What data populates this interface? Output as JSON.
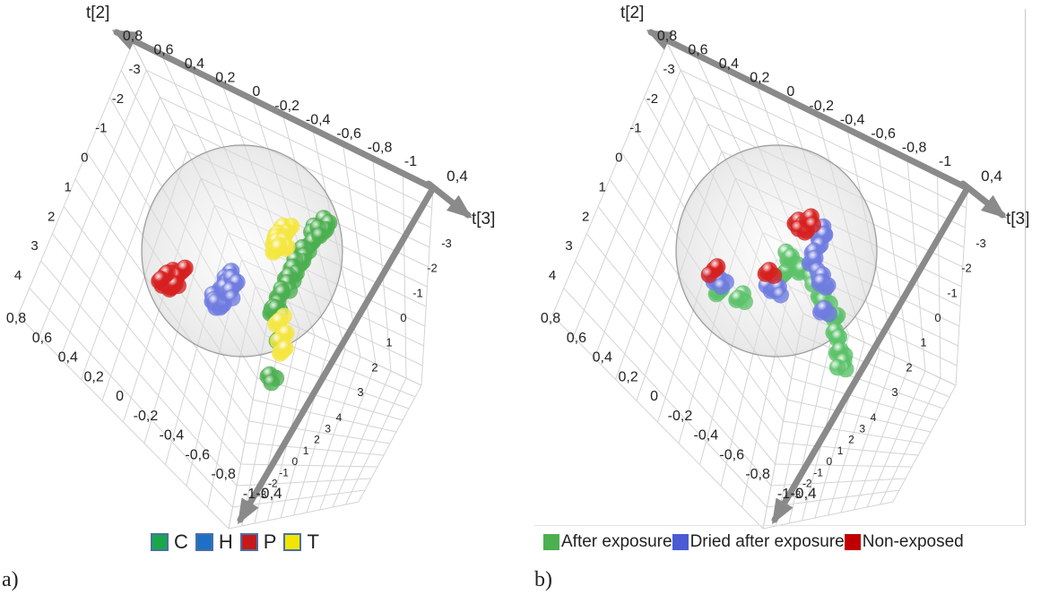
{
  "figure": {
    "panels": [
      {
        "label": "a)",
        "legend": [
          {
            "label": "C",
            "color": "#1aa64a"
          },
          {
            "label": "H",
            "color": "#1f6fc4"
          },
          {
            "label": "P",
            "color": "#c41a1a"
          },
          {
            "label": "T",
            "color": "#f2e600"
          }
        ]
      },
      {
        "label": "b)",
        "legend": [
          {
            "label": "After exposure",
            "color": "#4caf50"
          },
          {
            "label": "Dried after exposure",
            "color": "#4a5bd4"
          },
          {
            "label": "Non-exposed",
            "color": "#c00000"
          }
        ]
      }
    ]
  },
  "chart_data": [
    {
      "type": "scatter",
      "subtype": "3d-score-plot",
      "panel": "a)",
      "axes": {
        "t[2]": {
          "label": "t[2]",
          "ticks": [
            "0,8",
            "0,6",
            "0,4",
            "0,2",
            "0",
            "-0,2",
            "-0,4",
            "-0,6",
            "-0,8",
            "-1"
          ]
        },
        "left_vertical": {
          "ticks": [
            "-3",
            "-2",
            "-1",
            "0",
            "1",
            "2",
            "3",
            "4"
          ]
        },
        "bottom_diag": {
          "ticks": [
            "0,8",
            "0,6",
            "0,4",
            "0,2",
            "0",
            "-0,2",
            "-0,4",
            "-0,6",
            "-0,8",
            "-1"
          ]
        },
        "t[3]": {
          "label": "t[3]",
          "ticks": [
            "0,4",
            "-0,4"
          ]
        },
        "right_vertical": {
          "ticks": [
            "-3",
            "-2",
            "-1",
            "0",
            "1",
            "2",
            "3"
          ]
        },
        "bottom_right": {
          "ticks": [
            "4",
            "3",
            "2",
            "1",
            "0",
            "-1",
            "-2",
            "-3"
          ]
        }
      },
      "confidence_ellipsoid": true,
      "series": [
        {
          "name": "C",
          "color": "#4caf50",
          "points": [
            [
              0.55,
              -0.3,
              0.1
            ],
            [
              0.52,
              -0.25,
              0.12
            ],
            [
              0.48,
              -0.2,
              0.1
            ],
            [
              0.45,
              -0.12,
              0.08
            ],
            [
              0.42,
              -0.05,
              0.05
            ],
            [
              0.4,
              0.02,
              0.02
            ],
            [
              0.38,
              0.08,
              0.0
            ],
            [
              0.36,
              0.15,
              -0.02
            ],
            [
              0.33,
              0.22,
              -0.04
            ],
            [
              0.3,
              0.3,
              -0.06
            ],
            [
              0.28,
              0.35,
              -0.08
            ],
            [
              0.6,
              -0.35,
              0.15
            ],
            [
              0.56,
              -0.28,
              0.14
            ],
            [
              0.35,
              0.55,
              -0.1
            ],
            [
              0.32,
              0.9,
              -0.15
            ]
          ]
        },
        {
          "name": "H",
          "color": "#6f7ce0",
          "points": [
            [
              -0.1,
              0.05,
              0.0
            ],
            [
              -0.12,
              0.1,
              0.02
            ],
            [
              -0.15,
              0.15,
              0.0
            ],
            [
              -0.18,
              0.2,
              -0.02
            ],
            [
              -0.2,
              0.25,
              0.0
            ],
            [
              -0.14,
              0.2,
              0.04
            ],
            [
              -0.08,
              0.12,
              0.02
            ],
            [
              -0.22,
              0.3,
              0.02
            ],
            [
              -0.16,
              0.28,
              -0.04
            ],
            [
              -0.1,
              0.22,
              0.0
            ]
          ]
        },
        {
          "name": "P",
          "color": "#d62020",
          "points": [
            [
              -0.55,
              0.05,
              0.0
            ],
            [
              -0.58,
              0.08,
              0.02
            ],
            [
              -0.52,
              0.1,
              -0.02
            ],
            [
              -0.6,
              0.12,
              0.0
            ],
            [
              -0.5,
              0.04,
              0.03
            ],
            [
              -0.56,
              0.15,
              0.02
            ],
            [
              -0.62,
              0.06,
              -0.02
            ]
          ]
        },
        {
          "name": "T",
          "color": "#f5e642",
          "points": [
            [
              0.3,
              -0.32,
              0.1
            ],
            [
              0.28,
              -0.3,
              0.12
            ],
            [
              0.26,
              -0.26,
              0.08
            ],
            [
              0.24,
              -0.22,
              0.06
            ],
            [
              0.22,
              -0.18,
              0.1
            ],
            [
              0.3,
              -0.2,
              0.04
            ],
            [
              0.27,
              -0.15,
              0.0
            ],
            [
              0.35,
              0.42,
              -0.08
            ],
            [
              0.38,
              0.55,
              -0.1
            ],
            [
              0.4,
              0.65,
              -0.12
            ]
          ]
        }
      ]
    },
    {
      "type": "scatter",
      "subtype": "3d-score-plot",
      "panel": "b)",
      "axes": {
        "t[2]": {
          "label": "t[2]",
          "ticks": [
            "0,8",
            "0,6",
            "0,4",
            "0,2",
            "0",
            "-0,2",
            "-0,4",
            "-0,6",
            "-0,8",
            "-1"
          ]
        },
        "left_vertical": {
          "ticks": [
            "-3",
            "-2",
            "-1",
            "0",
            "1",
            "2",
            "3",
            "4"
          ]
        },
        "bottom_diag": {
          "ticks": [
            "0,8",
            "0,6",
            "0,4",
            "0,2",
            "0",
            "-0,2",
            "-0,4",
            "-0,6",
            "-0,8",
            "-1"
          ]
        },
        "t[3]": {
          "label": "t[3]",
          "ticks": [
            "0,4",
            "-0,4"
          ]
        },
        "right_vertical": {
          "ticks": [
            "-3",
            "-2",
            "-1",
            "0",
            "1",
            "2",
            "3"
          ]
        },
        "bottom_right": {
          "ticks": [
            "4",
            "3",
            "2",
            "1",
            "0",
            "-1",
            "-2",
            "-3"
          ]
        }
      },
      "confidence_ellipsoid": true,
      "series": [
        {
          "name": "After exposure",
          "color": "#5cc26a",
          "points": [
            [
              0.2,
              0.0,
              0.0
            ],
            [
              0.3,
              0.1,
              0.02
            ],
            [
              0.35,
              0.2,
              0.0
            ],
            [
              0.4,
              0.3,
              -0.02
            ],
            [
              0.45,
              0.4,
              0.0
            ],
            [
              0.5,
              0.55,
              -0.04
            ],
            [
              0.55,
              0.7,
              -0.06
            ],
            [
              0.58,
              0.8,
              -0.1
            ],
            [
              -0.45,
              0.2,
              0.0
            ],
            [
              -0.3,
              0.25,
              0.02
            ],
            [
              0.05,
              0.05,
              0.0
            ],
            [
              0.1,
              -0.1,
              0.02
            ]
          ]
        },
        {
          "name": "Dried after exposure",
          "color": "#6f7ce0",
          "points": [
            [
              0.3,
              -0.3,
              0.1
            ],
            [
              0.32,
              -0.25,
              0.08
            ],
            [
              0.28,
              -0.15,
              0.06
            ],
            [
              0.25,
              -0.05,
              0.04
            ],
            [
              0.35,
              0.05,
              0.02
            ],
            [
              0.38,
              0.15,
              0.0
            ],
            [
              -0.5,
              0.08,
              0.0
            ],
            [
              -0.45,
              0.12,
              0.02
            ],
            [
              -0.05,
              0.15,
              0.0
            ],
            [
              0.0,
              0.2,
              0.02
            ],
            [
              0.4,
              0.35,
              -0.02
            ]
          ]
        },
        {
          "name": "Non-exposed",
          "color": "#d62020",
          "points": [
            [
              0.12,
              -0.35,
              0.1
            ],
            [
              0.16,
              -0.32,
              0.08
            ],
            [
              0.2,
              -0.38,
              0.12
            ],
            [
              -0.05,
              0.02,
              0.0
            ],
            [
              -0.5,
              0.02,
              0.0
            ]
          ]
        }
      ]
    }
  ]
}
